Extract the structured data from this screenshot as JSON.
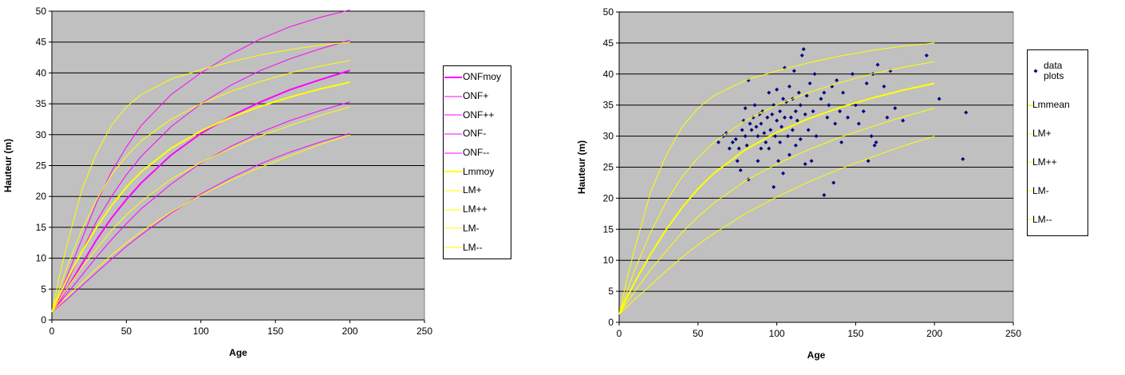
{
  "chart_data": [
    {
      "type": "line",
      "xlabel": "Age",
      "ylabel": "Hauteur (m)",
      "x": [
        0,
        5,
        10,
        20,
        30,
        40,
        50,
        60,
        80,
        100,
        120,
        140,
        160,
        180,
        200
      ],
      "xlim": [
        0,
        250
      ],
      "xticks": [
        0,
        50,
        100,
        150,
        200,
        250
      ],
      "ylim": [
        0,
        50
      ],
      "yticks": [
        0,
        5,
        10,
        15,
        20,
        25,
        30,
        35,
        40,
        45,
        50
      ],
      "grid": true,
      "legend": "right",
      "series": [
        {
          "name": "ONFmoy",
          "color": "#ff00ff",
          "width": 2,
          "values": [
            1.3,
            3,
            5,
            9,
            13,
            16.5,
            19.5,
            22.2,
            26.7,
            30.2,
            33,
            35.3,
            37.3,
            38.9,
            40.4
          ]
        },
        {
          "name": "ONF+",
          "color": "#ff00ff",
          "width": 1,
          "values": [
            1.3,
            3.5,
            6,
            11,
            16,
            20,
            23.5,
            26.5,
            31.3,
            35,
            38,
            40.4,
            42.3,
            43.9,
            45.3
          ]
        },
        {
          "name": "ONF++",
          "color": "#ff00ff",
          "width": 1,
          "values": [
            1.3,
            4,
            7,
            13,
            19,
            24,
            28,
            31.5,
            36.5,
            40,
            43,
            45.5,
            47.5,
            49,
            50.2
          ]
        },
        {
          "name": "ONF-",
          "color": "#ff00ff",
          "width": 1,
          "values": [
            1.3,
            2.7,
            4.2,
            7.2,
            10.2,
            13,
            15.6,
            18,
            22,
            25.4,
            28.1,
            30.4,
            32.3,
            33.9,
            35.3
          ]
        },
        {
          "name": "ONF--",
          "color": "#ff00ff",
          "width": 1,
          "values": [
            1.3,
            2.3,
            3.3,
            5.5,
            7.7,
            9.8,
            11.9,
            13.8,
            17.3,
            20.4,
            23,
            25.3,
            27.2,
            28.8,
            30.2
          ]
        },
        {
          "name": "Lmmoy",
          "color": "#ffff00",
          "width": 2,
          "values": [
            1.3,
            4,
            6.5,
            11,
            15,
            18.5,
            21.5,
            24,
            27.8,
            30.6,
            32.8,
            34.6,
            36.1,
            37.4,
            38.5
          ]
        },
        {
          "name": "LM+",
          "color": "#ffff00",
          "width": 1,
          "values": [
            1.3,
            5,
            8.5,
            14.5,
            19.5,
            23.5,
            26.5,
            29,
            32.5,
            35,
            37,
            38.6,
            40,
            41.1,
            42
          ]
        },
        {
          "name": "LM++",
          "color": "#ffff00",
          "width": 1,
          "values": [
            1.3,
            7,
            12,
            21,
            27,
            31.5,
            34.5,
            36.5,
            39,
            40.5,
            41.8,
            42.9,
            43.8,
            44.5,
            45
          ]
        },
        {
          "name": "LM-",
          "color": "#ffff00",
          "width": 1,
          "values": [
            1.3,
            3.2,
            5,
            8.5,
            11.5,
            14.5,
            17,
            19.2,
            22.8,
            25.5,
            27.8,
            29.8,
            31.5,
            33.1,
            34.5
          ]
        },
        {
          "name": "LM--",
          "color": "#ffff00",
          "width": 1,
          "values": [
            1.3,
            2.5,
            3.7,
            6,
            8.3,
            10.5,
            12.5,
            14.3,
            17.5,
            20.2,
            22.6,
            24.7,
            26.6,
            28.4,
            30
          ]
        }
      ]
    },
    {
      "type": "combo",
      "xlabel": "Age",
      "ylabel": "Hauteur (m)",
      "x": [
        0,
        5,
        10,
        20,
        30,
        40,
        50,
        60,
        80,
        100,
        120,
        140,
        160,
        180,
        200
      ],
      "xlim": [
        0,
        250
      ],
      "xticks": [
        0,
        50,
        100,
        150,
        200,
        250
      ],
      "ylim": [
        0,
        50
      ],
      "yticks": [
        0,
        5,
        10,
        15,
        20,
        25,
        30,
        35,
        40,
        45,
        50
      ],
      "grid": true,
      "legend": "right",
      "series": [
        {
          "name": "data plots",
          "type": "scatter",
          "color": "#000080",
          "x": [
            63,
            66,
            68,
            70,
            72,
            74,
            75,
            76,
            77,
            78,
            79,
            80,
            80,
            81,
            82,
            82,
            83,
            84,
            85,
            86,
            87,
            88,
            88,
            89,
            90,
            90,
            91,
            92,
            93,
            94,
            95,
            95,
            96,
            97,
            98,
            98,
            99,
            100,
            100,
            101,
            102,
            102,
            103,
            104,
            104,
            105,
            105,
            106,
            107,
            108,
            108,
            109,
            110,
            110,
            111,
            112,
            112,
            113,
            114,
            115,
            115,
            116,
            117,
            118,
            118,
            119,
            120,
            121,
            122,
            123,
            124,
            125,
            128,
            130,
            130,
            132,
            133,
            135,
            136,
            137,
            138,
            140,
            141,
            142,
            145,
            148,
            150,
            152,
            155,
            157,
            158,
            160,
            161,
            162,
            163,
            164,
            168,
            170,
            172,
            175,
            180,
            195,
            203,
            218,
            220
          ],
          "values": [
            29,
            30,
            30.5,
            28,
            29,
            29.5,
            26,
            28,
            24.5,
            31,
            32.5,
            34.5,
            30,
            28.5,
            39,
            23,
            32,
            31,
            33,
            35,
            31.5,
            30,
            26,
            33.5,
            28,
            32,
            34,
            30.5,
            29,
            33,
            37,
            28,
            31,
            33.5,
            21.8,
            35,
            30,
            37.5,
            32.5,
            26,
            34,
            29,
            31.5,
            36,
            24,
            41,
            33,
            35.5,
            30,
            38,
            27,
            33,
            36,
            31,
            40.5,
            34,
            28.5,
            32.5,
            37,
            35,
            29.5,
            43,
            44,
            33.5,
            25.5,
            36.5,
            31,
            38.5,
            26,
            34,
            40,
            30,
            36,
            37,
            20.5,
            33,
            35,
            38,
            22.5,
            32,
            39,
            34,
            29,
            37,
            33,
            40,
            35,
            32,
            34,
            38.5,
            26,
            30,
            40,
            28.5,
            29,
            41.5,
            38,
            33,
            40.5,
            34.5,
            32.5,
            43,
            36,
            26.3,
            33.8
          ]
        },
        {
          "name": "Lmmean",
          "type": "line",
          "color": "#ffff00",
          "width": 2,
          "values": [
            1.3,
            4,
            6.5,
            11,
            15,
            18.5,
            21.5,
            24,
            27.8,
            30.6,
            32.8,
            34.6,
            36.1,
            37.4,
            38.5
          ]
        },
        {
          "name": "LM+",
          "type": "line",
          "color": "#ffff00",
          "width": 1,
          "values": [
            1.3,
            5,
            8.5,
            14.5,
            19.5,
            23.5,
            26.5,
            29,
            32.5,
            35,
            37,
            38.6,
            40,
            41.1,
            42
          ]
        },
        {
          "name": "LM++",
          "type": "line",
          "color": "#ffff00",
          "width": 1,
          "values": [
            1.3,
            7,
            12,
            21,
            27,
            31.5,
            34.5,
            36.5,
            39,
            40.5,
            41.8,
            42.9,
            43.8,
            44.5,
            45
          ]
        },
        {
          "name": "LM-",
          "type": "line",
          "color": "#ffff00",
          "width": 1,
          "values": [
            1.3,
            3.2,
            5,
            8.5,
            11.5,
            14.5,
            17,
            19.2,
            22.8,
            25.5,
            27.8,
            29.8,
            31.5,
            33.1,
            34.5
          ]
        },
        {
          "name": "LM--",
          "type": "line",
          "color": "#ffff00",
          "width": 1,
          "values": [
            1.3,
            2.5,
            3.7,
            6,
            8.3,
            10.5,
            12.5,
            14.3,
            17.5,
            20.2,
            22.6,
            24.7,
            26.6,
            28.4,
            30
          ]
        }
      ]
    }
  ]
}
